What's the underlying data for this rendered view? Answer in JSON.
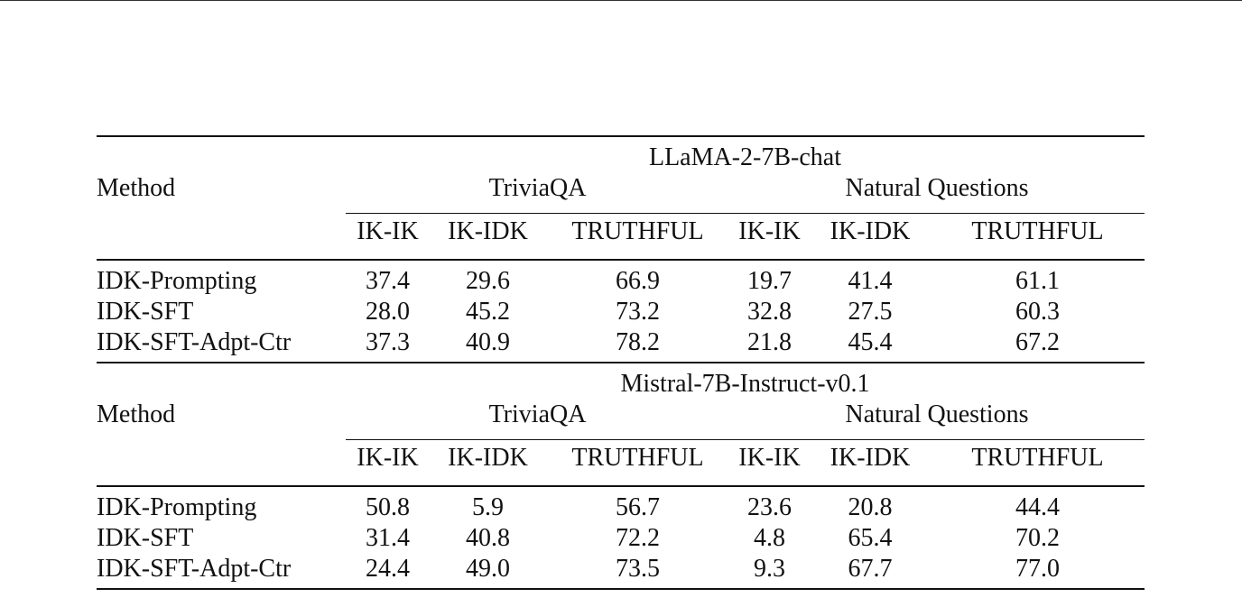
{
  "table": {
    "method_header": "Method",
    "blocks": [
      {
        "model": "LLaMA-2-7B-chat",
        "datasets": [
          "TriviaQA",
          "Natural Questions"
        ],
        "metrics": [
          "IK-IK",
          "IK-IDK",
          "TRUTHFUL",
          "IK-IK",
          "IK-IDK",
          "TRUTHFUL"
        ],
        "rows": [
          {
            "method": "IDK-Prompting",
            "values": [
              "37.4",
              "29.6",
              "66.9",
              "19.7",
              "41.4",
              "61.1"
            ]
          },
          {
            "method": "IDK-SFT",
            "values": [
              "28.0",
              "45.2",
              "73.2",
              "32.8",
              "27.5",
              "60.3"
            ]
          },
          {
            "method": "IDK-SFT-Adpt-Ctr",
            "values": [
              "37.3",
              "40.9",
              "78.2",
              "21.8",
              "45.4",
              "67.2"
            ]
          }
        ]
      },
      {
        "model": "Mistral-7B-Instruct-v0.1",
        "datasets": [
          "TriviaQA",
          "Natural Questions"
        ],
        "metrics": [
          "IK-IK",
          "IK-IDK",
          "TRUTHFUL",
          "IK-IK",
          "IK-IDK",
          "TRUTHFUL"
        ],
        "rows": [
          {
            "method": "IDK-Prompting",
            "values": [
              "50.8",
              "5.9",
              "56.7",
              "23.6",
              "20.8",
              "44.4"
            ]
          },
          {
            "method": "IDK-SFT",
            "values": [
              "31.4",
              "40.8",
              "72.2",
              "4.8",
              "65.4",
              "70.2"
            ]
          },
          {
            "method": "IDK-SFT-Adpt-Ctr",
            "values": [
              "24.4",
              "49.0",
              "73.5",
              "9.3",
              "67.7",
              "77.0"
            ]
          }
        ]
      }
    ]
  }
}
